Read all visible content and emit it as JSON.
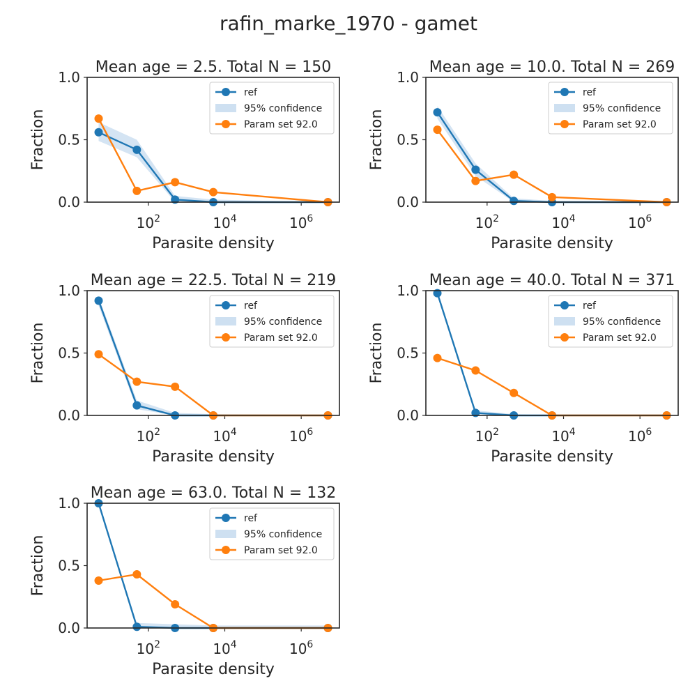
{
  "figure_title": "rafin_marke_1970 - gamet",
  "colors": {
    "ref": "#1f77b4",
    "param": "#ff7f0e",
    "band": "#c6dbef",
    "axis": "#262626"
  },
  "legend": {
    "ref": "ref",
    "band": "95% confidence",
    "param": "Param set 92.0",
    "placement": "upper right"
  },
  "chart_data": [
    {
      "type": "line",
      "title": "Mean age = 2.5.  Total N = 150",
      "xlabel": "Parasite density",
      "ylabel": "Fraction",
      "xscale": "log",
      "ylim": [
        0,
        1
      ],
      "x": [
        5,
        50,
        500,
        5000,
        5000000
      ],
      "series": [
        {
          "name": "ref",
          "values": [
            0.56,
            0.42,
            0.02,
            0.0,
            0.0
          ],
          "ci_low": [
            0.49,
            0.36,
            0.0,
            0.0,
            0.0
          ],
          "ci_high": [
            0.64,
            0.5,
            0.05,
            0.02,
            0.0
          ]
        },
        {
          "name": "Param set 92.0",
          "values": [
            0.67,
            0.09,
            0.16,
            0.08,
            0.0
          ]
        }
      ]
    },
    {
      "type": "line",
      "title": "Mean age = 10.0.  Total N = 269",
      "xlabel": "Parasite density",
      "ylabel": "Fraction",
      "xscale": "log",
      "ylim": [
        0,
        1
      ],
      "x": [
        5,
        50,
        500,
        5000,
        5000000
      ],
      "series": [
        {
          "name": "ref",
          "values": [
            0.72,
            0.26,
            0.01,
            0.0,
            0.0
          ],
          "ci_low": [
            0.67,
            0.21,
            0.0,
            0.0,
            0.0
          ],
          "ci_high": [
            0.77,
            0.31,
            0.03,
            0.01,
            0.0
          ]
        },
        {
          "name": "Param set 92.0",
          "values": [
            0.58,
            0.17,
            0.22,
            0.04,
            0.0
          ]
        }
      ]
    },
    {
      "type": "line",
      "title": "Mean age = 22.5.  Total N = 219",
      "xlabel": "Parasite density",
      "ylabel": "Fraction",
      "xscale": "log",
      "ylim": [
        0,
        1
      ],
      "x": [
        5,
        50,
        500,
        5000,
        5000000
      ],
      "series": [
        {
          "name": "ref",
          "values": [
            0.92,
            0.08,
            0.0,
            0.0,
            0.0
          ],
          "ci_low": [
            0.88,
            0.05,
            0.0,
            0.0,
            0.0
          ],
          "ci_high": [
            0.95,
            0.12,
            0.02,
            0.01,
            0.0
          ]
        },
        {
          "name": "Param set 92.0",
          "values": [
            0.49,
            0.27,
            0.23,
            0.0,
            0.0
          ]
        }
      ]
    },
    {
      "type": "line",
      "title": "Mean age = 40.0.  Total N = 371",
      "xlabel": "Parasite density",
      "ylabel": "Fraction",
      "xscale": "log",
      "ylim": [
        0,
        1
      ],
      "x": [
        5,
        50,
        500,
        5000,
        5000000
      ],
      "series": [
        {
          "name": "ref",
          "values": [
            0.98,
            0.02,
            0.0,
            0.0,
            0.0
          ],
          "ci_low": [
            0.96,
            0.01,
            0.0,
            0.0,
            0.0
          ],
          "ci_high": [
            0.99,
            0.04,
            0.01,
            0.0,
            0.0
          ]
        },
        {
          "name": "Param set 92.0",
          "values": [
            0.46,
            0.36,
            0.18,
            0.0,
            0.0
          ]
        }
      ]
    },
    {
      "type": "line",
      "title": "Mean age = 63.0.  Total N = 132",
      "xlabel": "Parasite density",
      "ylabel": "Fraction",
      "xscale": "log",
      "ylim": [
        0,
        1
      ],
      "x": [
        5,
        50,
        500,
        5000,
        5000000
      ],
      "series": [
        {
          "name": "ref",
          "values": [
            1.0,
            0.01,
            0.0,
            0.0,
            0.0
          ],
          "ci_low": [
            0.98,
            0.0,
            0.0,
            0.0,
            0.0
          ],
          "ci_high": [
            1.0,
            0.04,
            0.03,
            0.02,
            0.02
          ]
        },
        {
          "name": "Param set 92.0",
          "values": [
            0.38,
            0.43,
            0.19,
            0.0,
            0.0
          ]
        }
      ]
    }
  ]
}
